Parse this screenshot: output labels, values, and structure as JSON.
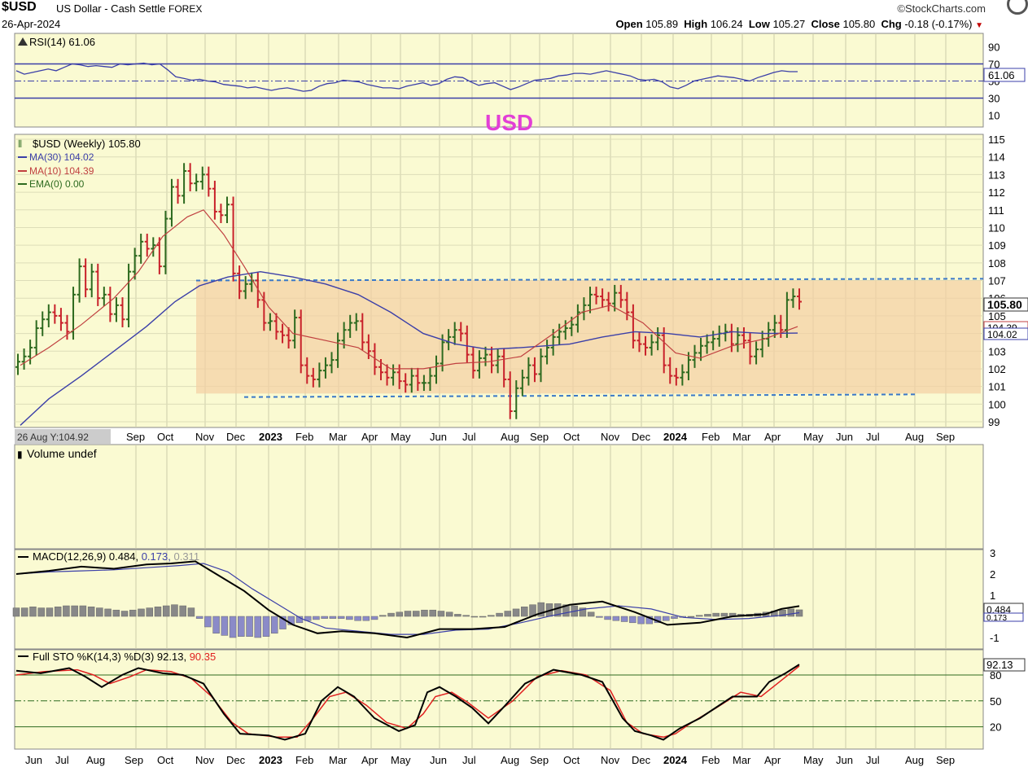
{
  "header": {
    "symbol": "$USD",
    "description": "US Dollar - Cash Settle",
    "exchange": "FOREX",
    "date": "26-Apr-2024",
    "brand": "StockCharts.com",
    "open_label": "Open",
    "open": "105.89",
    "high_label": "High",
    "high": "106.24",
    "low_label": "Low",
    "low": "105.27",
    "close_label": "Close",
    "close": "105.80",
    "chg_label": "Chg",
    "chg": "-0.18 (-0.17%)"
  },
  "annotation": {
    "text": "USD",
    "color": "#e23fd6"
  },
  "colors": {
    "panel_bg": "#fafad2",
    "up_bar": "#2d6a1f",
    "down_bar": "#c8202a",
    "ma30": "#3b3fa8",
    "ma10": "#c04040",
    "range_fill": "#f3cfa3",
    "range_line": "#3a78c8",
    "histogram": "#8b8bc8",
    "macd_line": "#000000",
    "signal_line": "#3b3fa8",
    "sto_d": "#e02020"
  },
  "rsi_panel": {
    "label": "RSI(14) 61.06",
    "value_tag": "61.06",
    "ticks": [
      "90",
      "70",
      "50",
      "30",
      "10"
    ]
  },
  "price_panel": {
    "legend": [
      {
        "text": "$USD (Weekly) 105.80",
        "color": "#000000"
      },
      {
        "text": "MA(30) 104.02",
        "color": "#3b3fa8"
      },
      {
        "text": "MA(10) 104.39",
        "color": "#c04040"
      },
      {
        "text": "EMA(0) 0.00",
        "color": "#2d6a1f"
      }
    ],
    "y_ticks": [
      "115",
      "114",
      "113",
      "112",
      "111",
      "110",
      "109",
      "108",
      "107",
      "106",
      "105",
      "104",
      "103",
      "102",
      "101",
      "100",
      "99"
    ],
    "tags": {
      "close": "105.80",
      "ma10": "104.39",
      "ma30": "104.02"
    },
    "date_readout": "26 Aug Y:104.92",
    "x_labels": [
      {
        "t": "Sep"
      },
      {
        "t": "Oct"
      },
      {
        "t": "Nov"
      },
      {
        "t": "Dec"
      },
      {
        "t": "2023",
        "bold": true
      },
      {
        "t": "Feb"
      },
      {
        "t": "Mar"
      },
      {
        "t": "Apr"
      },
      {
        "t": "May"
      },
      {
        "t": "Jun"
      },
      {
        "t": "Jul"
      },
      {
        "t": "Aug"
      },
      {
        "t": "Sep"
      },
      {
        "t": "Oct"
      },
      {
        "t": "Nov"
      },
      {
        "t": "Dec"
      },
      {
        "t": "2024",
        "bold": true
      },
      {
        "t": "Feb"
      },
      {
        "t": "Mar"
      },
      {
        "t": "Apr"
      },
      {
        "t": "May"
      },
      {
        "t": "Jun"
      },
      {
        "t": "Jul"
      },
      {
        "t": "Aug"
      },
      {
        "t": "Sep"
      }
    ]
  },
  "volume_panel": {
    "label": "Volume undef"
  },
  "macd_panel": {
    "label_main": "MACD(12,26,9) 0.484,",
    "label_signal": "0.173,",
    "label_hist": "0.311",
    "ticks": [
      "3",
      "2",
      "1",
      "-1"
    ],
    "tag_macd": "0.484",
    "tag_signal": "0.173"
  },
  "sto_panel": {
    "label_main": "Full STO %K(14,3) %D(3) 92.13,",
    "label_d": "90.35",
    "ticks": [
      "80",
      "50",
      "20"
    ],
    "tag": "92.13"
  },
  "bottom_axis": [
    {
      "t": "Jun"
    },
    {
      "t": "Jul"
    },
    {
      "t": "Aug"
    },
    {
      "t": "Sep"
    },
    {
      "t": "Oct"
    },
    {
      "t": "Nov"
    },
    {
      "t": "Dec"
    },
    {
      "t": "2023",
      "bold": true
    },
    {
      "t": "Feb"
    },
    {
      "t": "Mar"
    },
    {
      "t": "Apr"
    },
    {
      "t": "May"
    },
    {
      "t": "Jun"
    },
    {
      "t": "Jul"
    },
    {
      "t": "Aug"
    },
    {
      "t": "Sep"
    },
    {
      "t": "Oct"
    },
    {
      "t": "Nov"
    },
    {
      "t": "Dec"
    },
    {
      "t": "2024",
      "bold": true
    },
    {
      "t": "Feb"
    },
    {
      "t": "Mar"
    },
    {
      "t": "Apr"
    },
    {
      "t": "May"
    },
    {
      "t": "Jun"
    },
    {
      "t": "Jul"
    },
    {
      "t": "Aug"
    },
    {
      "t": "Sep"
    }
  ],
  "chart_data": {
    "type": "line",
    "title": "$USD US Dollar - Cash Settle FOREX",
    "ylim": [
      99,
      115
    ],
    "series": [
      {
        "name": "$USD (Weekly)",
        "x": [
          "Jun",
          "Jul",
          "Aug",
          "Sep",
          "Oct",
          "Nov",
          "Dec",
          "2023",
          "Feb",
          "Mar",
          "Apr",
          "May",
          "Jun",
          "Jul",
          "Aug",
          "Sep",
          "Oct",
          "Nov",
          "Dec",
          "2024",
          "Feb",
          "Mar",
          "Apr"
        ],
        "values": [
          102.5,
          105.2,
          107.8,
          109.5,
          112.8,
          111.0,
          106.0,
          103.8,
          102.3,
          103.9,
          101.8,
          101.3,
          103.6,
          102.1,
          101.5,
          104.5,
          106.2,
          105.8,
          103.1,
          101.5,
          103.3,
          104.0,
          105.8
        ]
      },
      {
        "name": "MA(30)",
        "x": [
          "Jun",
          "Aug",
          "Oct",
          "Nov",
          "Dec",
          "2023",
          "Mar",
          "May",
          "Jul",
          "Sep",
          "Nov",
          "2024",
          "Mar",
          "Apr"
        ],
        "values": [
          99.0,
          100.5,
          104.0,
          106.5,
          107.5,
          107.2,
          105.5,
          104.2,
          103.2,
          103.5,
          103.8,
          104.1,
          104.0,
          104.02
        ]
      },
      {
        "name": "MA(10)",
        "x": [
          "Jun",
          "Aug",
          "Oct",
          "Nov",
          "Dec",
          "2023",
          "Mar",
          "May",
          "Jul",
          "Sep",
          "Oct",
          "Nov",
          "2024",
          "Mar",
          "Apr"
        ],
        "values": [
          102.5,
          105.0,
          110.0,
          111.0,
          108.0,
          104.5,
          103.0,
          102.0,
          101.8,
          103.5,
          105.5,
          105.0,
          102.5,
          103.5,
          104.39
        ]
      }
    ],
    "range_box": {
      "top": 107.0,
      "bottom": 100.6
    },
    "rsi": {
      "last": 61.06,
      "levels": [
        70,
        50,
        30
      ]
    },
    "macd": {
      "macd": 0.484,
      "signal": 0.173,
      "histogram": 0.311
    },
    "stochastic": {
      "k": 92.13,
      "d": 90.35,
      "levels": [
        80,
        50,
        20
      ]
    }
  }
}
